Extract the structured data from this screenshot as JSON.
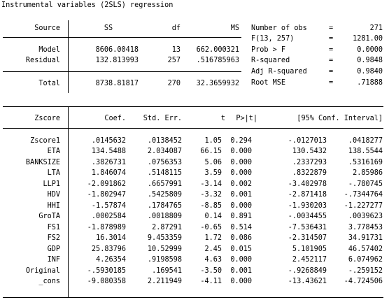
{
  "title": "Instrumental variables (2SLS) regression",
  "anova": {
    "headers": {
      "source": "Source",
      "ss": "SS",
      "df": "df",
      "ms": "MS"
    },
    "rows": [
      {
        "source": "Model",
        "ss": "8606.00418",
        "df": "13",
        "ms": "662.000321"
      },
      {
        "source": "Residual",
        "ss": "132.813993",
        "df": "257",
        "ms": ".516785963"
      }
    ],
    "total": {
      "source": "Total",
      "ss": "8738.81817",
      "df": "270",
      "ms": "32.3659932"
    }
  },
  "stats": [
    {
      "label": "Number of obs",
      "eq": "=",
      "value": "271"
    },
    {
      "label": "F(13, 257)",
      "eq": "=",
      "value": "1281.00"
    },
    {
      "label": "Prob > F",
      "eq": "=",
      "value": "0.0000"
    },
    {
      "label": "R-squared",
      "eq": "=",
      "value": "0.9848"
    },
    {
      "label": "Adj R-squared",
      "eq": "=",
      "value": "0.9840"
    },
    {
      "label": "Root MSE",
      "eq": "=",
      "value": ".71888"
    }
  ],
  "coef": {
    "headers": {
      "var": "Zscore",
      "coef": "Coef.",
      "se": "Std. Err.",
      "t": "t",
      "p": "P>|t|",
      "ci": "[95% Conf. Interval]"
    },
    "rows": [
      {
        "var": "Zscore1",
        "coef": ".0145632",
        "se": ".0138452",
        "t": "1.05",
        "p": "0.294",
        "lo": "-.0127013",
        "hi": ".0418277"
      },
      {
        "var": "ETA",
        "coef": "134.5488",
        "se": "2.034087",
        "t": "66.15",
        "p": "0.000",
        "lo": "130.5432",
        "hi": "138.5544"
      },
      {
        "var": "BANKSIZE",
        "coef": ".3826731",
        "se": ".0756353",
        "t": "5.06",
        "p": "0.000",
        "lo": ".2337293",
        "hi": ".5316169"
      },
      {
        "var": "LTA",
        "coef": "1.846074",
        "se": ".5148115",
        "t": "3.59",
        "p": "0.000",
        "lo": ".8322879",
        "hi": "2.85986"
      },
      {
        "var": "LLP1",
        "coef": "-2.091862",
        "se": ".6657991",
        "t": "-3.14",
        "p": "0.002",
        "lo": "-3.402978",
        "hi": "-.780745"
      },
      {
        "var": "HDV",
        "coef": "-1.802947",
        "se": ".5425809",
        "t": "-3.32",
        "p": "0.001",
        "lo": "-2.871418",
        "hi": "-.7344764"
      },
      {
        "var": "HHI",
        "coef": "-1.57874",
        "se": ".1784765",
        "t": "-8.85",
        "p": "0.000",
        "lo": "-1.930203",
        "hi": "-1.227277"
      },
      {
        "var": "GroTA",
        "coef": ".0002584",
        "se": ".0018809",
        "t": "0.14",
        "p": "0.891",
        "lo": "-.0034455",
        "hi": ".0039623"
      },
      {
        "var": "FS1",
        "coef": "-1.878989",
        "se": "2.87291",
        "t": "-0.65",
        "p": "0.514",
        "lo": "-7.536431",
        "hi": "3.778453"
      },
      {
        "var": "FS2",
        "coef": "16.3014",
        "se": "9.453359",
        "t": "1.72",
        "p": "0.086",
        "lo": "-2.314507",
        "hi": "34.91731"
      },
      {
        "var": "GDP",
        "coef": "25.83796",
        "se": "10.52999",
        "t": "2.45",
        "p": "0.015",
        "lo": "5.101905",
        "hi": "46.57402"
      },
      {
        "var": "INF",
        "coef": "4.26354",
        "se": ".9198598",
        "t": "4.63",
        "p": "0.000",
        "lo": "2.452117",
        "hi": "6.074962"
      },
      {
        "var": "Original",
        "coef": "-.5930185",
        "se": ".169541",
        "t": "-3.50",
        "p": "0.001",
        "lo": "-.9268849",
        "hi": "-.259152"
      },
      {
        "var": "_cons",
        "coef": "-9.080358",
        "se": "2.211949",
        "t": "-4.11",
        "p": "0.000",
        "lo": "-13.43621",
        "hi": "-4.724506"
      }
    ]
  }
}
